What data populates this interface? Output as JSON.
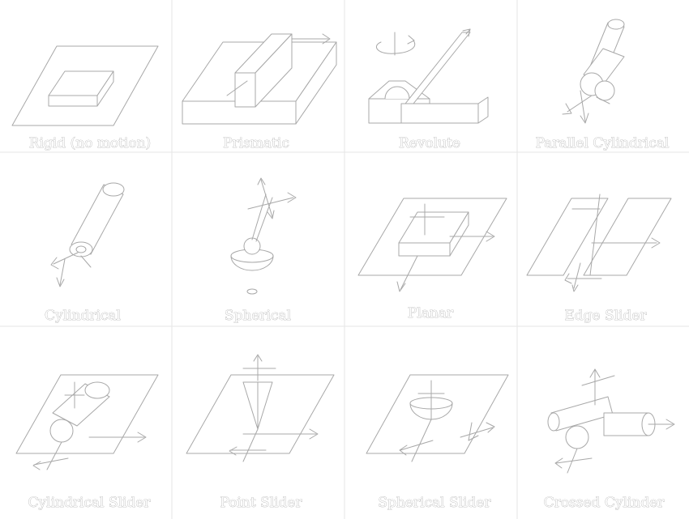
{
  "joints": [
    {
      "label": "Rigid (no motion)",
      "icon": "rigid-joint-icon"
    },
    {
      "label": "Prismatic",
      "icon": "prismatic-joint-icon"
    },
    {
      "label": "Revolute",
      "icon": "revolute-joint-icon"
    },
    {
      "label": "Parallel Cylindrical",
      "icon": "parallel-cylindrical-joint-icon"
    },
    {
      "label": "Cylindrical",
      "icon": "cylindrical-joint-icon"
    },
    {
      "label": "Spherical",
      "icon": "spherical-joint-icon"
    },
    {
      "label": "Planar",
      "icon": "planar-joint-icon"
    },
    {
      "label": "Edge Slider",
      "icon": "edge-slider-joint-icon"
    },
    {
      "label": "Cylindrical Slider",
      "icon": "cylindrical-slider-joint-icon"
    },
    {
      "label": "Point Slider",
      "icon": "point-slider-joint-icon"
    },
    {
      "label": "Spherical Slider",
      "icon": "spherical-slider-joint-icon"
    },
    {
      "label": "Crossed Cylinder",
      "icon": "crossed-cylinder-joint-icon"
    }
  ]
}
